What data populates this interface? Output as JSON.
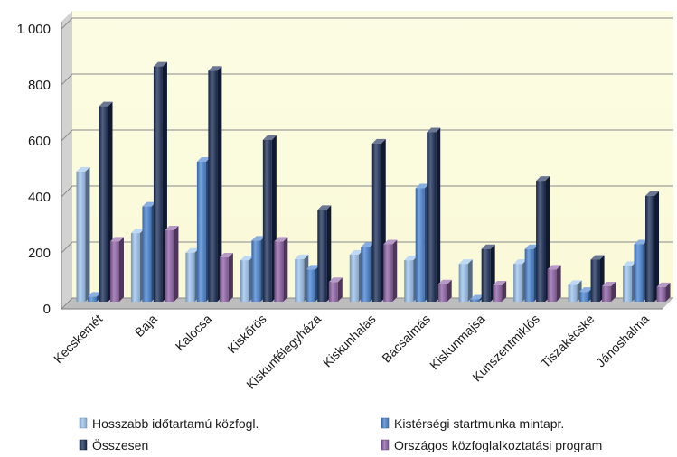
{
  "chart_data": {
    "type": "bar",
    "title": "",
    "xlabel": "",
    "ylabel": "",
    "ylim": [
      0,
      1000
    ],
    "y_ticks": [
      0,
      200,
      400,
      600,
      800,
      1000
    ],
    "y_tick_labels": [
      "0",
      "200",
      "400",
      "600",
      "800",
      "1 000"
    ],
    "grid": true,
    "legend_position": "bottom",
    "categories": [
      "Kecskemét",
      "Baja",
      "Kalocsa",
      "Kiskőrös",
      "Kiskunfélegyháza",
      "Kiskunhalas",
      "Bácsalmás",
      "Kiskunmajsa",
      "Kunszentmiklós",
      "Tiszakécske",
      "Jánoshalma"
    ],
    "series": [
      {
        "name": "Hosszabb időtartamú közfogl.",
        "color": "#9cc3ee",
        "values": [
          465,
          245,
          175,
          148,
          152,
          168,
          148,
          135,
          135,
          60,
          128
        ]
      },
      {
        "name": "Kistérségi startmunka mintapr.",
        "color": "#4a84d2",
        "values": [
          18,
          340,
          500,
          218,
          115,
          195,
          405,
          8,
          188,
          35,
          205
        ]
      },
      {
        "name": "Összesen",
        "color": "#1b2e57",
        "values": [
          698,
          840,
          825,
          578,
          328,
          565,
          605,
          188,
          432,
          150,
          378
        ]
      },
      {
        "name": "Országos közfoglalkoztatási program",
        "color": "#8e62a6",
        "values": [
          215,
          255,
          158,
          215,
          70,
          205,
          62,
          58,
          115,
          55,
          52
        ]
      }
    ]
  }
}
